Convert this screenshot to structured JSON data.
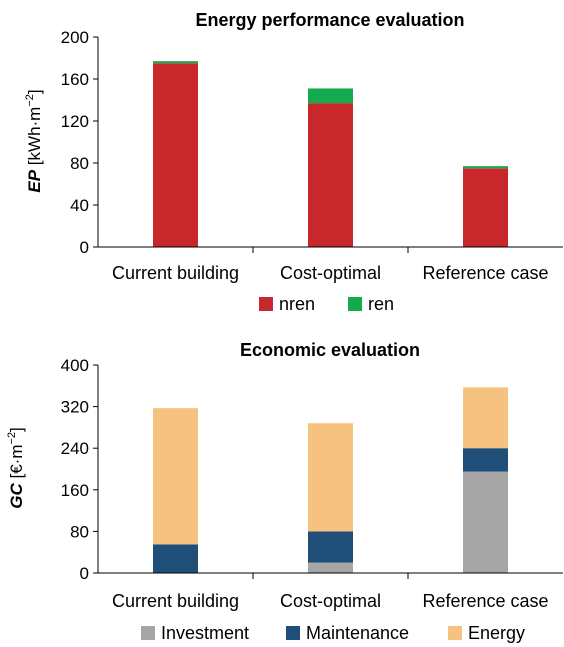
{
  "chart_data": [
    {
      "type": "bar",
      "stacked": true,
      "title": "Energy performance evaluation",
      "ylabel_italic": "EP",
      "ylabel_unit": "[kWh·m",
      "ylabel_sup": "−2",
      "ylabel_close": "]",
      "ylim": [
        0,
        200
      ],
      "yticks": [
        0,
        40,
        80,
        120,
        160,
        200
      ],
      "categories": [
        "Current building",
        "Cost-optimal",
        "Reference case"
      ],
      "series": [
        {
          "name": "nren",
          "color": "#c8282b",
          "values": [
            175,
            137,
            75
          ]
        },
        {
          "name": "ren",
          "color": "#13ab4d",
          "values": [
            2,
            14,
            2
          ]
        }
      ],
      "legend_position": "bottom",
      "grid": false
    },
    {
      "type": "bar",
      "stacked": true,
      "title": "Economic evaluation",
      "ylabel_italic": "GC",
      "ylabel_unit": "[€·m",
      "ylabel_sup": "−2",
      "ylabel_close": "]",
      "ylim": [
        0,
        400
      ],
      "yticks": [
        0,
        80,
        160,
        240,
        320,
        400
      ],
      "categories": [
        "Current building",
        "Cost-optimal",
        "Reference case"
      ],
      "series": [
        {
          "name": "Investment",
          "color": "#a6a6a6",
          "values": [
            0,
            20,
            195
          ]
        },
        {
          "name": "Maintenance",
          "color": "#1f4e79",
          "values": [
            55,
            60,
            45
          ]
        },
        {
          "name": "Energy",
          "color": "#f5c27f",
          "values": [
            262,
            208,
            117
          ]
        }
      ],
      "legend_position": "bottom",
      "grid": false
    }
  ]
}
